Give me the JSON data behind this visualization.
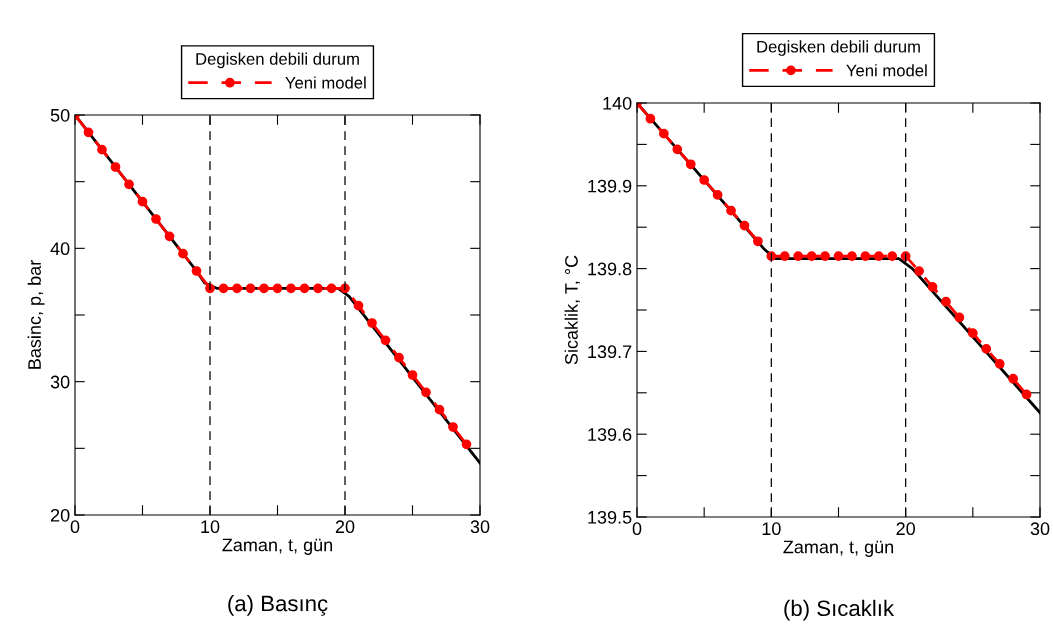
{
  "chart_data": [
    {
      "type": "line",
      "xlabel": "Zaman, t, gün",
      "ylabel": "Basinc, p, bar",
      "legend_title": "Degisken debili durum",
      "legend": "top",
      "xlim": [
        0,
        30
      ],
      "xticks": [
        0,
        {
          "value": 5,
          "label": null
        },
        10,
        {
          "value": 15,
          "label": null
        },
        20,
        {
          "value": 25,
          "label": null
        },
        30
      ],
      "ylim": [
        20,
        50
      ],
      "yticks": [
        20,
        {
          "value": 25,
          "label": null
        },
        30,
        {
          "value": 35,
          "label": null
        },
        40,
        {
          "value": 45,
          "label": null
        },
        50
      ],
      "grid": false,
      "ref_lines": [
        {
          "axis": "x",
          "value": 10,
          "color": "#000000",
          "line_style": "dashed"
        },
        {
          "axis": "x",
          "value": 20,
          "color": "#000000",
          "line_style": "dashed"
        }
      ],
      "series": [
        {
          "color": "#000000",
          "line_style": "solid",
          "marker": "none",
          "x": [
            0,
            9,
            9.6,
            10.5,
            19.5,
            20.3,
            30
          ],
          "values": [
            50,
            38.3,
            37.4,
            37,
            37,
            36.4,
            23.9
          ]
        },
        {
          "name": "Yeni model",
          "color": "#ff0000",
          "line_style": "dashed",
          "marker": "circle",
          "x": [
            0,
            1,
            2,
            3,
            4,
            5,
            6,
            7,
            8,
            9,
            10,
            11,
            12,
            13,
            14,
            15,
            16,
            17,
            18,
            19,
            20,
            21,
            22,
            23,
            24,
            25,
            26,
            27,
            28,
            29
          ],
          "values": [
            50,
            48.7,
            47.4,
            46.1,
            44.8,
            43.5,
            42.2,
            40.9,
            39.6,
            38.3,
            37,
            37,
            37,
            37,
            37,
            37,
            37,
            37,
            37,
            37,
            37,
            35.7,
            34.4,
            33.1,
            31.8,
            30.5,
            29.2,
            27.9,
            26.6,
            25.3
          ]
        }
      ],
      "annotations": [
        "(a) Basınç"
      ]
    },
    {
      "type": "line",
      "xlabel": "Zaman, t, gün",
      "ylabel": "Sicaklik, T, °C",
      "legend_title": "Degisken debili durum",
      "legend": "top",
      "xlim": [
        0,
        30
      ],
      "xticks": [
        0,
        {
          "value": 5,
          "label": null
        },
        10,
        {
          "value": 15,
          "label": null
        },
        20,
        {
          "value": 25,
          "label": null
        },
        30
      ],
      "ylim": [
        139.5,
        140
      ],
      "yticks": [
        139.5,
        {
          "value": 139.55,
          "label": null
        },
        139.6,
        {
          "value": 139.65,
          "label": null
        },
        139.7,
        {
          "value": 139.75,
          "label": null
        },
        139.8,
        {
          "value": 139.85,
          "label": null
        },
        139.9,
        {
          "value": 139.95,
          "label": null
        },
        140
      ],
      "grid": false,
      "ref_lines": [
        {
          "axis": "x",
          "value": 10,
          "color": "#000000",
          "line_style": "dashed"
        },
        {
          "axis": "x",
          "value": 20,
          "color": "#000000",
          "line_style": "dashed"
        }
      ],
      "series": [
        {
          "color": "#000000",
          "line_style": "solid",
          "marker": "none",
          "x": [
            0,
            9.5,
            10.3,
            19.5,
            20.5,
            30
          ],
          "values": [
            140,
            139.823,
            139.812,
            139.812,
            139.8,
            139.626
          ]
        },
        {
          "name": "Yeni model",
          "color": "#ff0000",
          "line_style": "dashed",
          "marker": "circle",
          "x": [
            0,
            1,
            2,
            3,
            4,
            5,
            6,
            7,
            8,
            9,
            10,
            11,
            12,
            13,
            14,
            15,
            16,
            17,
            18,
            19,
            20,
            21,
            22,
            23,
            24,
            25,
            26,
            27,
            28,
            29
          ],
          "values": [
            140,
            139.981,
            139.963,
            139.944,
            139.926,
            139.907,
            139.889,
            139.87,
            139.852,
            139.833,
            139.815,
            139.815,
            139.815,
            139.815,
            139.815,
            139.815,
            139.815,
            139.815,
            139.815,
            139.815,
            139.815,
            139.797,
            139.778,
            139.76,
            139.741,
            139.722,
            139.703,
            139.685,
            139.667,
            139.648
          ]
        }
      ],
      "annotations": [
        "(b) Sıcaklık"
      ]
    }
  ]
}
